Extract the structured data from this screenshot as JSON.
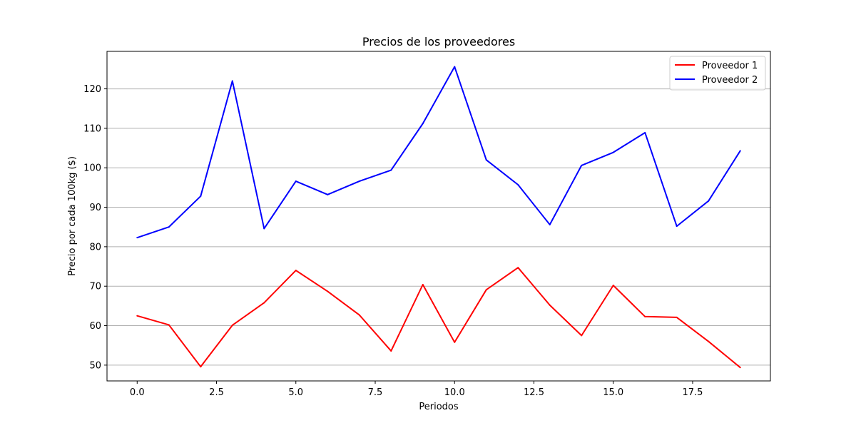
{
  "chart_data": {
    "type": "line",
    "title": "Precios de los proveedores",
    "xlabel": "Periodos",
    "ylabel": "Precio por cada 100kg ($)",
    "xlim": [
      -0.95,
      19.95
    ],
    "ylim": [
      46,
      129.5
    ],
    "xticks": [
      0.0,
      2.5,
      5.0,
      7.5,
      10.0,
      12.5,
      15.0,
      17.5
    ],
    "xtick_labels": [
      "0.0",
      "2.5",
      "5.0",
      "7.5",
      "10.0",
      "12.5",
      "15.0",
      "17.5"
    ],
    "yticks": [
      50,
      60,
      70,
      80,
      90,
      100,
      110,
      120
    ],
    "ytick_labels": [
      "50",
      "60",
      "70",
      "80",
      "90",
      "100",
      "110",
      "120"
    ],
    "grid": "horizontal",
    "legend_position": "top-right",
    "x": [
      0,
      1,
      2,
      3,
      4,
      5,
      6,
      7,
      8,
      9,
      10,
      11,
      12,
      13,
      14,
      15,
      16,
      17,
      18,
      19
    ],
    "series": [
      {
        "name": "Proveedor 1",
        "color": "#ff0000",
        "values": [
          62.5,
          60.2,
          49.6,
          60.1,
          65.8,
          74.0,
          68.7,
          62.7,
          53.6,
          70.4,
          55.8,
          69.1,
          74.7,
          65.2,
          57.5,
          70.2,
          62.3,
          62.1,
          56.0,
          49.4
        ]
      },
      {
        "name": "Proveedor 2",
        "color": "#0000ff",
        "values": [
          82.3,
          85.0,
          92.8,
          122.0,
          84.6,
          96.6,
          93.2,
          96.6,
          99.4,
          111.2,
          125.6,
          102.0,
          95.7,
          85.6,
          100.6,
          103.9,
          108.9,
          85.2,
          91.6,
          104.3
        ]
      }
    ]
  }
}
